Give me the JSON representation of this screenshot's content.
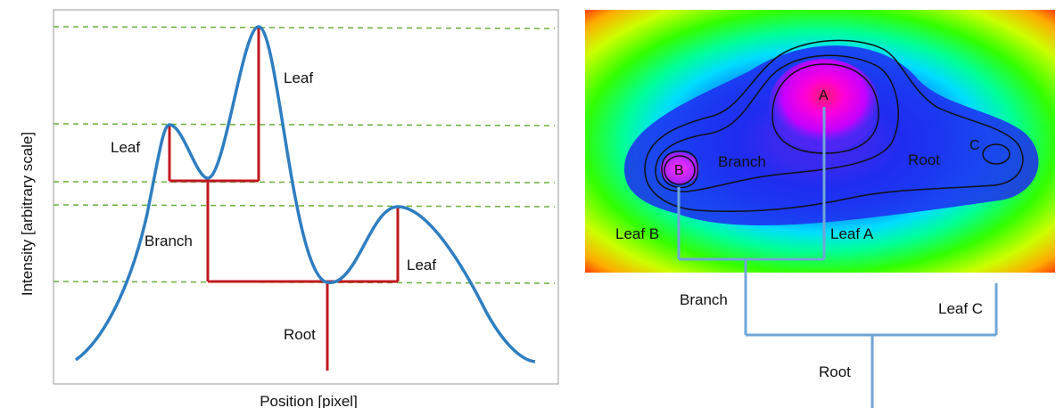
{
  "left_panel": {
    "ylabel": "Intensity   [arbitrary scale]",
    "xlabel": "Position  [pixel]",
    "labels": {
      "leaf_top": "Leaf",
      "leaf_left": "Leaf",
      "leaf_right": "Leaf",
      "branch": "Branch",
      "root": "Root"
    }
  },
  "right_panel": {
    "peaks": {
      "a": "A",
      "b": "B",
      "c": "C"
    },
    "region_labels": {
      "branch": "Branch",
      "root": "Root"
    },
    "tree_labels": {
      "leaf_b": "Leaf B",
      "leaf_a": "Leaf A",
      "branch": "Branch",
      "leaf_c": "Leaf C",
      "root": "Root"
    }
  },
  "colors": {
    "curve": "#2e7ec1",
    "tree_left": "#c0181e",
    "tree_right": "#6fa6d8",
    "dashed": "#6aaf3e",
    "contour": "#111111"
  }
}
